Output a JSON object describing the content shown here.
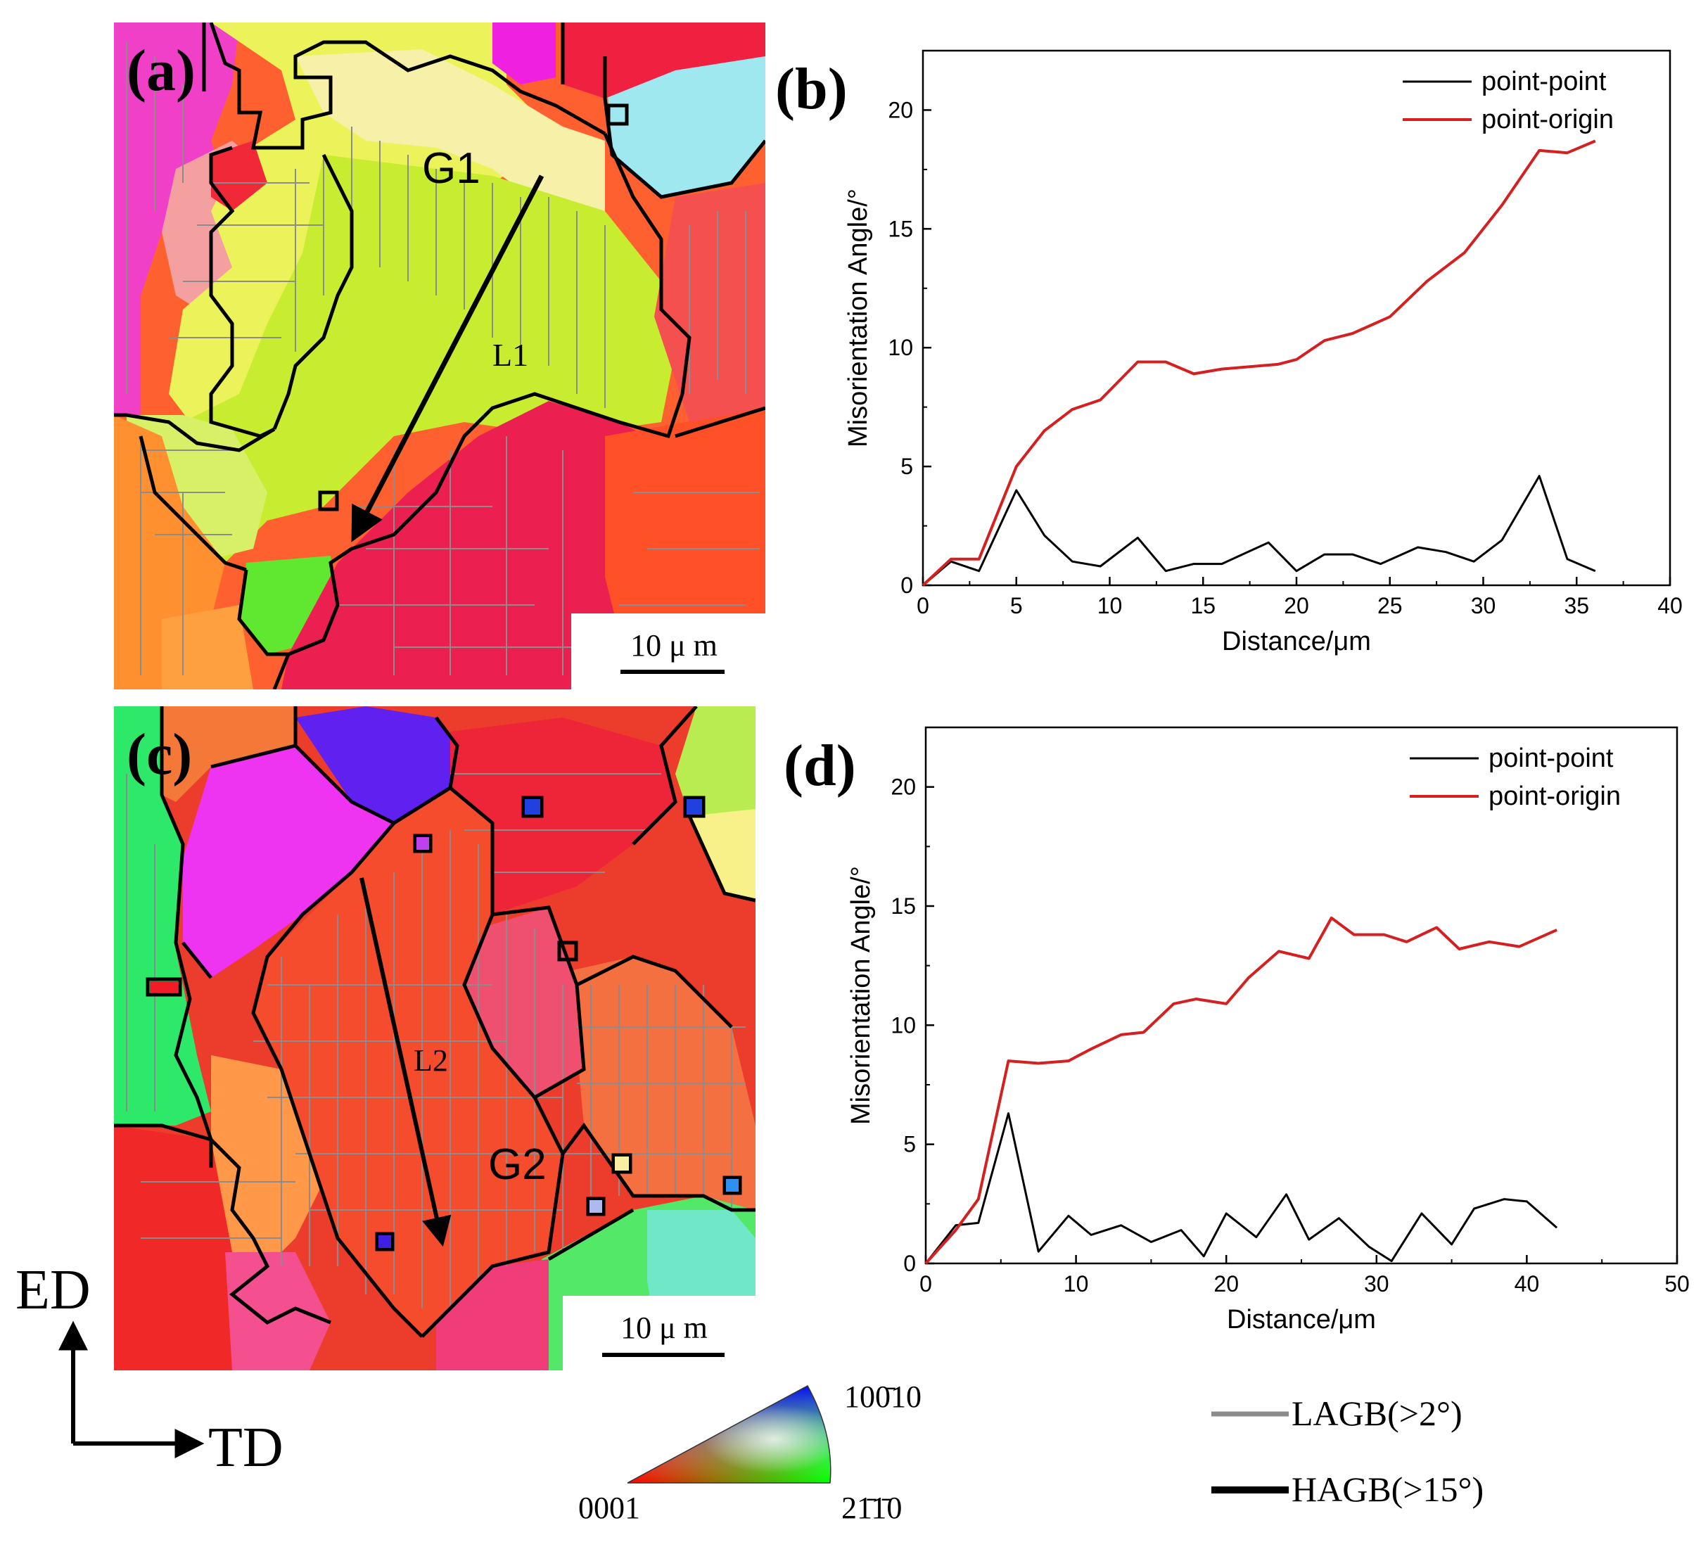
{
  "panels": {
    "a": {
      "label": "(a)",
      "grain_label": "G1",
      "line_label": "L1",
      "scale_bar": "10 μ m"
    },
    "c": {
      "label": "(c)",
      "grain_label": "G2",
      "line_label": "L2",
      "scale_bar": "10 μ m"
    },
    "b": {
      "label": "(b)"
    },
    "d": {
      "label": "(d)"
    }
  },
  "axes_indicator": {
    "vertical": "ED",
    "horizontal": "TD"
  },
  "ipf_key": {
    "corner_bottom_left": "0001",
    "corner_top_right": "100̄10",
    "corner_bottom_right": "21̄1̄0"
  },
  "boundary_legend": {
    "lagb": "LAGB(>2°)",
    "hagb": "HAGB(>15°)",
    "lagb_color": "#8c8c8c",
    "hagb_color": "#000000"
  },
  "colors": {
    "point_point": "#000000",
    "point_origin": "#d42020"
  },
  "chart_data": [
    {
      "type": "line",
      "panel": "b",
      "xlabel": "Distance/μm",
      "ylabel": "Misorientation Angle/°",
      "xlim": [
        0,
        40
      ],
      "ylim": [
        0,
        22.5
      ],
      "xticks": [
        0,
        5,
        10,
        15,
        20,
        25,
        30,
        35,
        40
      ],
      "yticks": [
        0,
        5,
        10,
        15,
        20
      ],
      "legend_position": "top-right",
      "series": [
        {
          "name": "point-point",
          "color": "#000000",
          "x": [
            0,
            1.5,
            3,
            5,
            6.5,
            8,
            9.5,
            11.5,
            13,
            14.5,
            16,
            18.5,
            20,
            21.5,
            23,
            24.5,
            26.5,
            28,
            29.5,
            31,
            33,
            34.5,
            36
          ],
          "y": [
            0,
            1.0,
            0.6,
            4.0,
            2.1,
            1.0,
            0.8,
            2.0,
            0.6,
            0.9,
            0.9,
            1.8,
            0.6,
            1.3,
            1.3,
            0.9,
            1.6,
            1.4,
            1.0,
            1.9,
            4.6,
            1.1,
            0.6
          ]
        },
        {
          "name": "point-origin",
          "color": "#d42020",
          "x": [
            0,
            1.5,
            3,
            5,
            6.5,
            8,
            9.5,
            11.5,
            13,
            14.5,
            16,
            17.5,
            19,
            20,
            21.5,
            23,
            25,
            27,
            29,
            31,
            33,
            34.5,
            36
          ],
          "y": [
            0,
            1.1,
            1.1,
            5.0,
            6.5,
            7.4,
            7.8,
            9.4,
            9.4,
            8.9,
            9.1,
            9.2,
            9.3,
            9.5,
            10.3,
            10.6,
            11.3,
            12.8,
            14.0,
            16.0,
            18.3,
            18.2,
            18.7
          ]
        }
      ]
    },
    {
      "type": "line",
      "panel": "d",
      "xlabel": "Distance/μm",
      "ylabel": "Misorientation Angle/°",
      "xlim": [
        0,
        50
      ],
      "ylim": [
        0,
        22.5
      ],
      "xticks": [
        0,
        10,
        20,
        30,
        40,
        50
      ],
      "yticks": [
        0,
        5,
        10,
        15,
        20
      ],
      "legend_position": "top-right",
      "series": [
        {
          "name": "point-point",
          "color": "#000000",
          "x": [
            0,
            2,
            3.5,
            5.5,
            7.5,
            9.5,
            11,
            13,
            15,
            17,
            18.5,
            20,
            22,
            24,
            25.5,
            27.5,
            29.5,
            31,
            33,
            35,
            36.5,
            38.5,
            40,
            42
          ],
          "y": [
            0,
            1.6,
            1.7,
            6.3,
            0.5,
            2.0,
            1.2,
            1.6,
            0.9,
            1.4,
            0.3,
            2.1,
            1.1,
            2.9,
            1.0,
            1.9,
            0.7,
            0.1,
            2.1,
            0.8,
            2.3,
            2.7,
            2.6,
            1.5
          ]
        },
        {
          "name": "point-origin",
          "color": "#d42020",
          "x": [
            0,
            2,
            3.5,
            5.5,
            7.5,
            9.5,
            11,
            13,
            14.5,
            16.5,
            18,
            20,
            21.5,
            23.5,
            25.5,
            27,
            28.5,
            30.5,
            32,
            34,
            35.5,
            37.5,
            39.5,
            42
          ],
          "y": [
            0,
            1.4,
            2.7,
            8.5,
            8.4,
            8.5,
            9.0,
            9.6,
            9.7,
            10.9,
            11.1,
            10.9,
            12.0,
            13.1,
            12.8,
            14.5,
            13.8,
            13.8,
            13.5,
            14.1,
            13.2,
            13.5,
            13.3,
            14.0
          ]
        }
      ]
    }
  ]
}
